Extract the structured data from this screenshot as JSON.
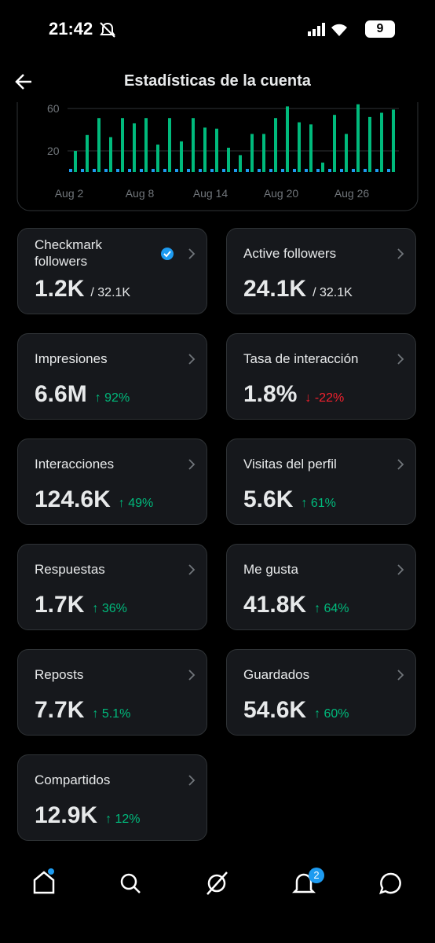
{
  "status": {
    "time": "21:42",
    "battery": "9"
  },
  "header": {
    "title": "Estadísticas de la cuenta"
  },
  "chart_data": {
    "type": "bar",
    "categories": [
      "Aug 2",
      null,
      null,
      null,
      null,
      null,
      "Aug 8",
      null,
      null,
      null,
      null,
      null,
      "Aug 14",
      null,
      null,
      null,
      null,
      null,
      "Aug 20",
      null,
      null,
      null,
      null,
      null,
      "Aug 26",
      null,
      null,
      null
    ],
    "series": [
      {
        "color": "#1d9bf0",
        "values": [
          3,
          3,
          3,
          3,
          3,
          3,
          3,
          3,
          3,
          3,
          3,
          3,
          3,
          3,
          3,
          3,
          3,
          3,
          3,
          3,
          3,
          3,
          3,
          3,
          3,
          3,
          3,
          3
        ]
      },
      {
        "color": "#00ba7c",
        "values": [
          20,
          35,
          51,
          33,
          51,
          46,
          51,
          26,
          51,
          29,
          51,
          42,
          41,
          23,
          16,
          36,
          36,
          51,
          62,
          47,
          45,
          9,
          54,
          36,
          64,
          52,
          56,
          59
        ]
      }
    ],
    "ylim": [
      0,
      66
    ],
    "yticks": [
      20,
      60
    ],
    "grid": true
  },
  "cards": [
    {
      "label": "Checkmark followers",
      "value": "1.2K",
      "total": "/ 32.1K",
      "verified": true
    },
    {
      "label": "Active followers",
      "value": "24.1K",
      "total": "/ 32.1K"
    },
    {
      "label": "Impresiones",
      "value": "6.6M",
      "change": "↑ 92%"
    },
    {
      "label": "Tasa de interacción",
      "value": "1.8%",
      "change": "↓ -22%"
    },
    {
      "label": "Interacciones",
      "value": "124.6K",
      "change": "↑ 49%"
    },
    {
      "label": "Visitas del perfil",
      "value": "5.6K",
      "change": "↑ 61%"
    },
    {
      "label": "Respuestas",
      "value": "1.7K",
      "change": "↑ 36%"
    },
    {
      "label": "Me gusta",
      "value": "41.8K",
      "change": "↑ 64%"
    },
    {
      "label": "Reposts",
      "value": "7.7K",
      "change": "↑ 5.1%"
    },
    {
      "label": "Guardados",
      "value": "54.6K",
      "change": "↑ 60%"
    },
    {
      "label": "Compartidos",
      "value": "12.9K",
      "change": "↑ 12%"
    }
  ],
  "nav": {
    "badge": "2"
  }
}
